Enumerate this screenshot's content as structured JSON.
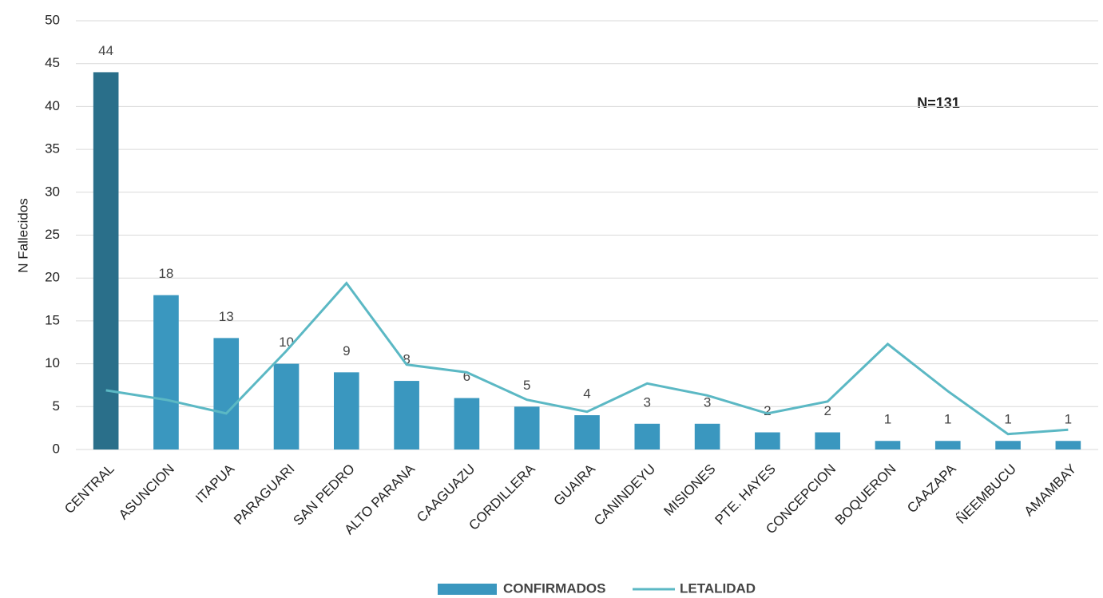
{
  "chart_data": {
    "type": "bar_line",
    "y_label": "N Fallecidos",
    "annotation": "N=131",
    "categories": [
      "CENTRAL",
      "ASUNCION",
      "ITAPUA",
      "PARAGUARI",
      "SAN PEDRO",
      "ALTO PARANA",
      "CAAGUAZU",
      "CORDILLERA",
      "GUAIRA",
      "CANINDEYU",
      "MISIONES",
      "PTE. HAYES",
      "CONCEPCION",
      "BOQUERON",
      "CAAZAPA",
      "ÑEEMBUCU",
      "AMAMBAY"
    ],
    "series": [
      {
        "name": "CONFIRMADOS",
        "type": "bar",
        "color": "#3a97bf",
        "highlight_color": "#2a6f8a",
        "values": [
          44,
          18,
          13,
          10,
          9,
          8,
          6,
          5,
          4,
          3,
          3,
          2,
          2,
          1,
          1,
          1,
          1
        ]
      },
      {
        "name": "LETALIDAD",
        "type": "line",
        "color": "#5bb8c4",
        "values": [
          6.9,
          5.8,
          4.2,
          11.5,
          19.4,
          9.9,
          9.0,
          5.8,
          4.4,
          7.7,
          6.3,
          4.2,
          5.6,
          12.3,
          6.8,
          1.8,
          2.3
        ]
      }
    ],
    "ylim": [
      0,
      50
    ],
    "yticks": [
      0,
      5,
      10,
      15,
      20,
      25,
      30,
      35,
      40,
      45,
      50
    ],
    "grid": true
  }
}
